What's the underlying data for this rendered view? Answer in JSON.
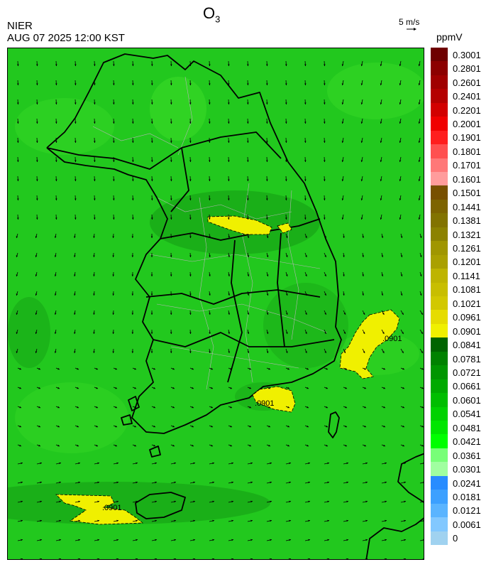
{
  "header": {
    "title_main": "O",
    "title_sub": "3",
    "agency": "NIER",
    "timestamp": "AUG 07 2025 12:00 KST",
    "wind_reference": "5 m/s",
    "units": "ppmV"
  },
  "map": {
    "contour_labels": [
      ".0901",
      ".0901",
      ".0901"
    ],
    "colors": {
      "background": "#22c81e",
      "light": "#3cdc28",
      "dark": "#149b14",
      "exceedance": "#f0f000",
      "border": "#000000",
      "district": "#b4b4b4"
    }
  },
  "colorbar": {
    "labels": [
      "0.3001",
      "0.2801",
      "0.2601",
      "0.2401",
      "0.2201",
      "0.2001",
      "0.1901",
      "0.1801",
      "0.1701",
      "0.1601",
      "0.1501",
      "0.1441",
      "0.1381",
      "0.1321",
      "0.1261",
      "0.1201",
      "0.1141",
      "0.1081",
      "0.1021",
      "0.0961",
      "0.0901",
      "0.0841",
      "0.0781",
      "0.0721",
      "0.0661",
      "0.0601",
      "0.0541",
      "0.0481",
      "0.0421",
      "0.0361",
      "0.0301",
      "0.0241",
      "0.0181",
      "0.0121",
      "0.0061",
      "0"
    ],
    "colors": [
      "#6e0000",
      "#8c0000",
      "#a00000",
      "#b40000",
      "#d20000",
      "#f00000",
      "#ff1e1e",
      "#ff5050",
      "#ff7878",
      "#ff9c9c",
      "#785000",
      "#7d6400",
      "#827300",
      "#8c8200",
      "#a09600",
      "#aaa000",
      "#beb400",
      "#c8be00",
      "#d2c800",
      "#e6dc00",
      "#f0f000",
      "#006400",
      "#008200",
      "#009600",
      "#00aa00",
      "#00be00",
      "#00d200",
      "#00e600",
      "#00ff00",
      "#78ff78",
      "#a0ffa0",
      "#288cff",
      "#3ca0ff",
      "#5ab4ff",
      "#82c8ff",
      "#a0d2f0"
    ]
  }
}
